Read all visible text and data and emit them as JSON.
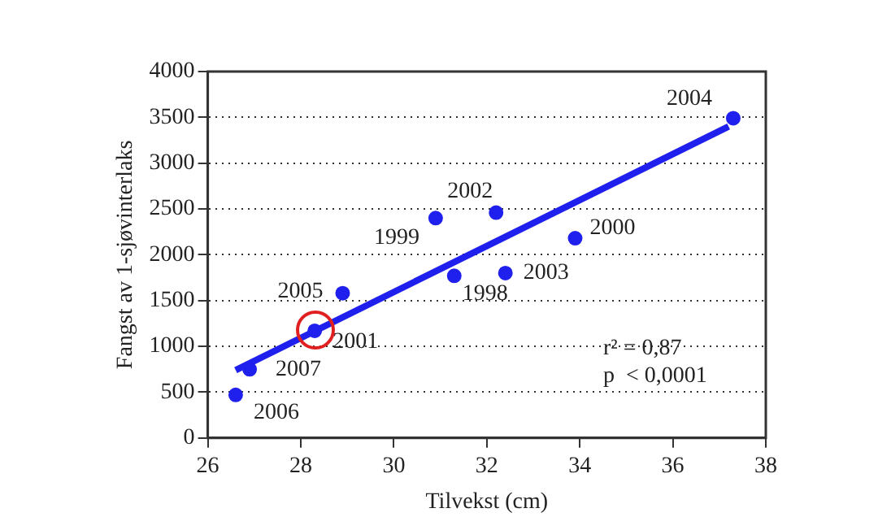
{
  "chart_data": {
    "type": "scatter",
    "xlabel": "Tilvekst (cm)",
    "ylabel": "Fangst av 1-sjøvinterlaks",
    "xlim": [
      26,
      38
    ],
    "xticks": [
      26,
      28,
      30,
      32,
      34,
      36,
      38
    ],
    "ylim": [
      0,
      4000
    ],
    "yticks": [
      0,
      500,
      1000,
      1500,
      2000,
      2500,
      3000,
      3500,
      4000
    ],
    "grid": "y",
    "legend": false,
    "series": [
      {
        "color": "#2020ee",
        "marker": "circle",
        "x": [
          26.6,
          26.9,
          28.3,
          28.9,
          30.9,
          31.3,
          32.2,
          32.4,
          33.9,
          37.3
        ],
        "values": [
          470,
          750,
          1170,
          1580,
          2400,
          1770,
          2460,
          1800,
          2180,
          3490
        ]
      },
      {
        "type": "line",
        "color": "#2020ee",
        "marker": "none",
        "x": [
          26.6,
          37.2
        ],
        "values": [
          740,
          3400
        ]
      }
    ],
    "annotations": [
      {
        "text": "2004",
        "x": 37.3,
        "y": 3490
      },
      {
        "text": "2000",
        "x": 33.9,
        "y": 2180
      },
      {
        "text": "2003",
        "x": 32.4,
        "y": 1800
      },
      {
        "text": "1998",
        "x": 31.3,
        "y": 1770
      },
      {
        "text": "2002",
        "x": 32.2,
        "y": 2460
      },
      {
        "text": "1999",
        "x": 30.9,
        "y": 2400
      },
      {
        "text": "2005",
        "x": 28.9,
        "y": 1580
      },
      {
        "text": "2001",
        "x": 28.3,
        "y": 1170
      },
      {
        "text": "2007",
        "x": 26.9,
        "y": 750
      },
      {
        "text": "2006",
        "x": 26.6,
        "y": 470
      },
      "r² = 0,87",
      "p  < 0,0001"
    ]
  }
}
